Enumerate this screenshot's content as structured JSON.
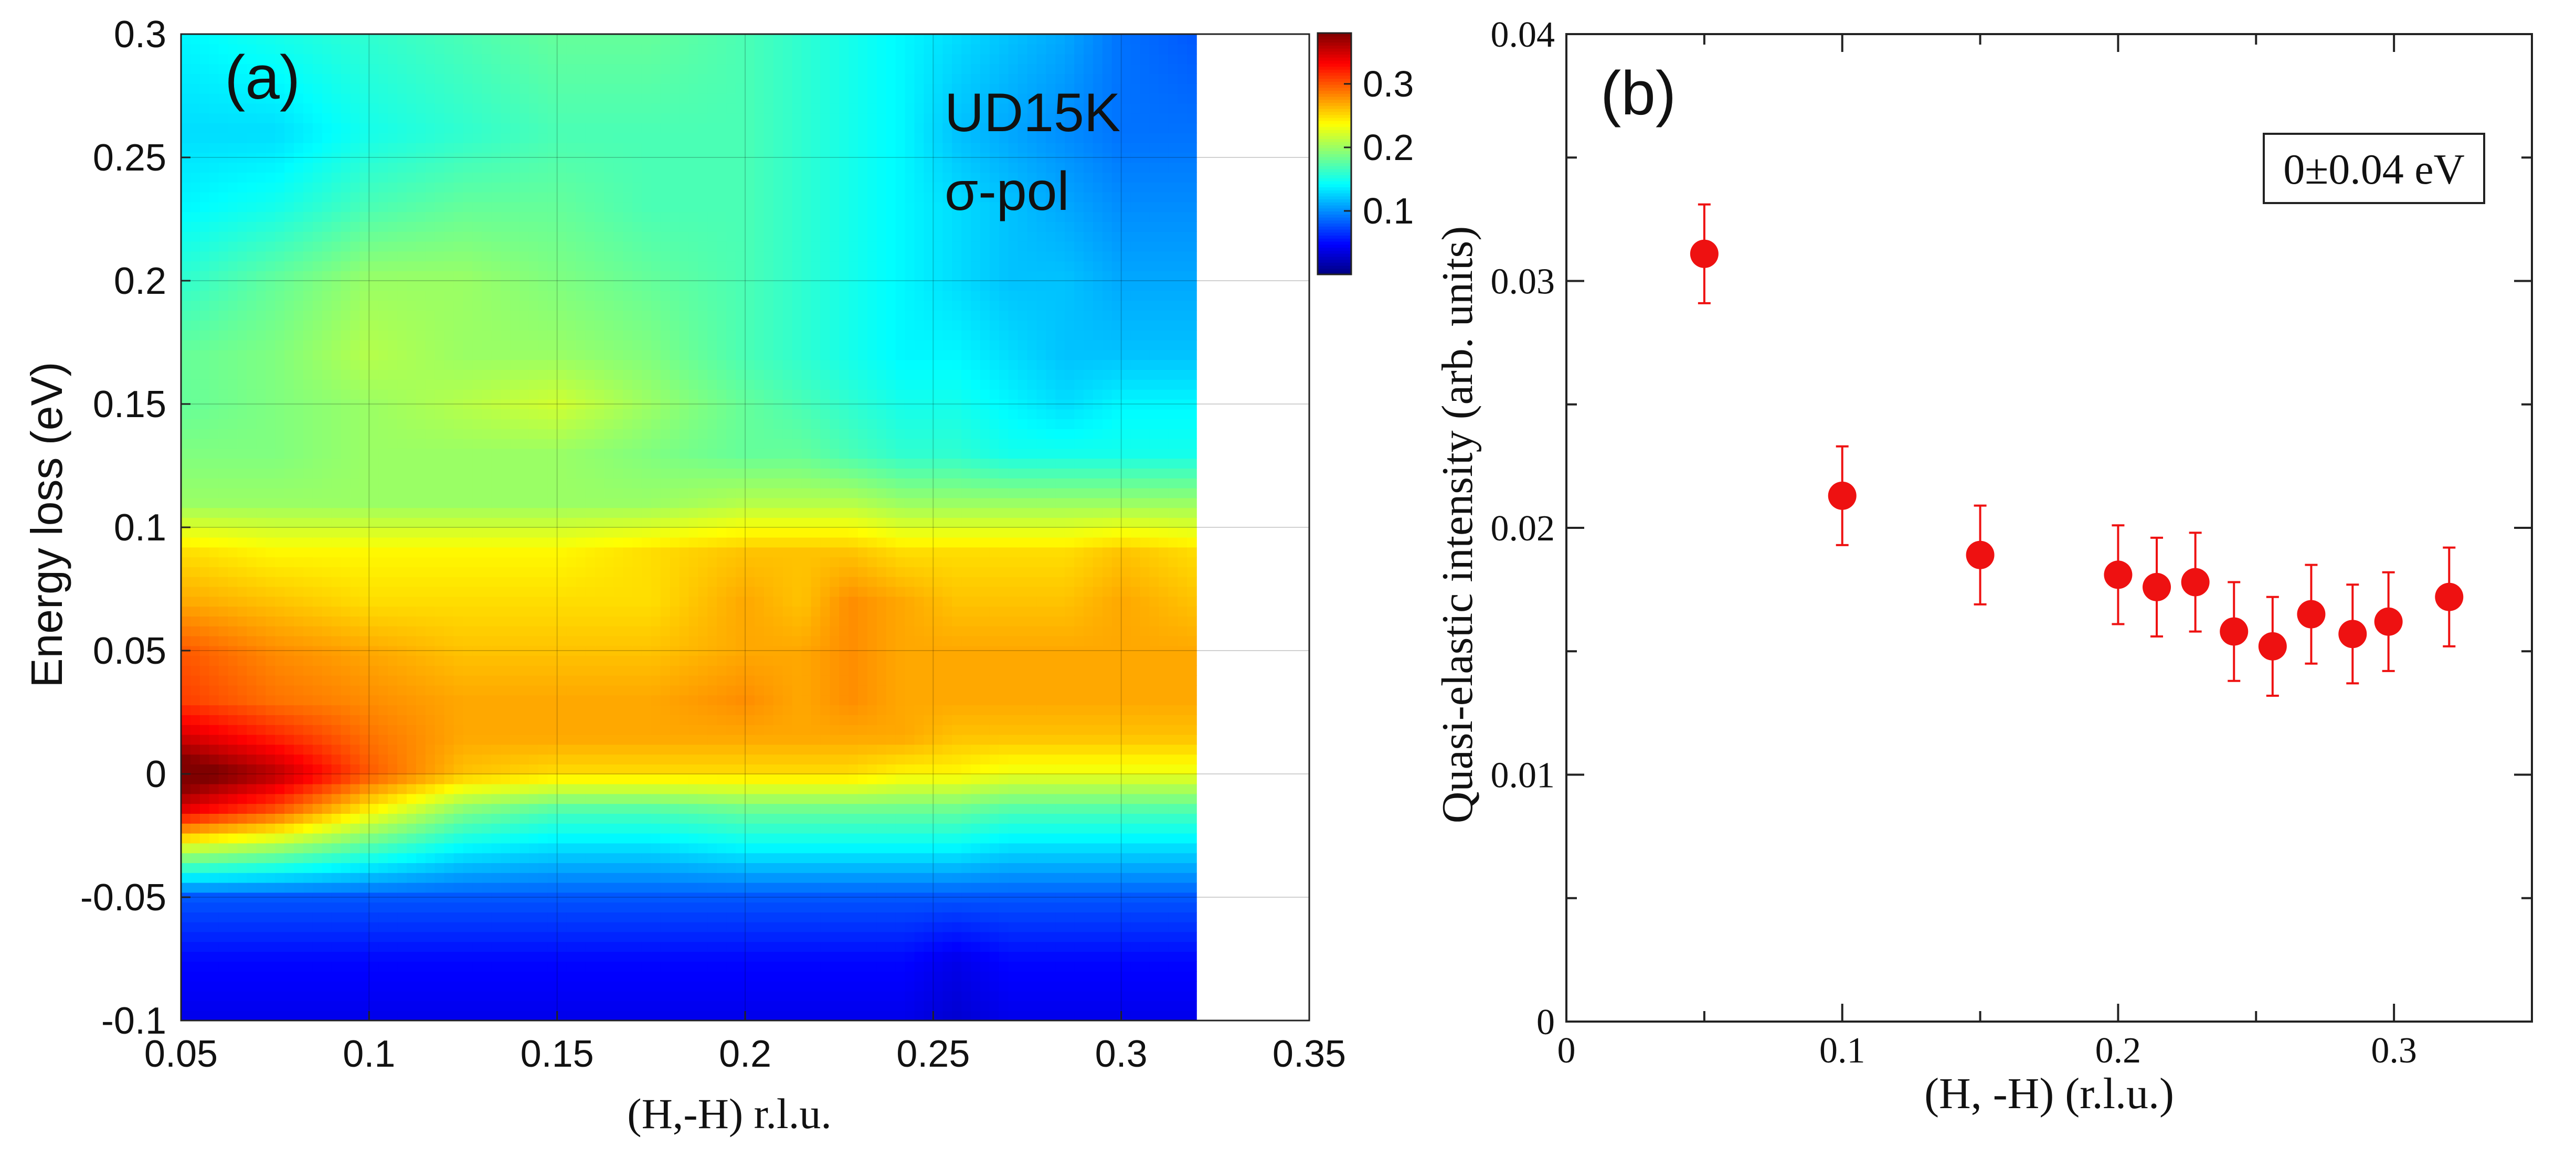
{
  "chart_data": [
    {
      "panel_label": "(a)",
      "type": "heatmap",
      "xlabel": "(H,-H) r.l.u.",
      "ylabel": "Energy loss (eV)",
      "xlim": [
        0.05,
        0.35
      ],
      "ylim": [
        -0.1,
        0.3
      ],
      "data_xmax": 0.32,
      "x_ticks": [
        0.05,
        0.1,
        0.15,
        0.2,
        0.25,
        0.3,
        0.35
      ],
      "x_tick_labels": [
        "0.05",
        "0.1",
        "0.15",
        "0.2",
        "0.25",
        "0.3",
        "0.35"
      ],
      "y_ticks": [
        -0.1,
        -0.05,
        0,
        0.05,
        0.1,
        0.15,
        0.2,
        0.25,
        0.3
      ],
      "y_tick_labels": [
        "-0.1",
        "-0.05",
        "0",
        "0.05",
        "0.1",
        "0.15",
        "0.2",
        "0.25",
        "0.3"
      ],
      "grid": true,
      "annotation_lines": [
        "UD15K",
        "σ-pol"
      ],
      "colorbar": {
        "range": [
          0.0,
          0.38
        ],
        "ticks": [
          0.1,
          0.2,
          0.3
        ],
        "tick_labels": [
          "0.1",
          "0.2",
          "0.3"
        ],
        "colormap": "jet"
      },
      "grid_x": [
        0.05,
        0.075,
        0.1,
        0.125,
        0.15,
        0.175,
        0.2,
        0.215,
        0.228,
        0.242,
        0.256,
        0.27,
        0.285,
        0.3,
        0.32
      ],
      "grid_y": [
        -0.1,
        -0.075,
        -0.05,
        -0.03,
        -0.015,
        0,
        0.015,
        0.03,
        0.05,
        0.07,
        0.09,
        0.11,
        0.13,
        0.15,
        0.17,
        0.2,
        0.23,
        0.26,
        0.3
      ],
      "z": [
        [
          0.04,
          0.04,
          0.04,
          0.04,
          0.04,
          0.04,
          0.04,
          0.04,
          0.04,
          0.04,
          0.03,
          0.04,
          0.04,
          0.04,
          0.04
        ],
        [
          0.05,
          0.05,
          0.05,
          0.05,
          0.05,
          0.05,
          0.05,
          0.05,
          0.05,
          0.05,
          0.04,
          0.05,
          0.05,
          0.05,
          0.05
        ],
        [
          0.08,
          0.08,
          0.08,
          0.08,
          0.08,
          0.08,
          0.08,
          0.08,
          0.08,
          0.08,
          0.08,
          0.08,
          0.08,
          0.08,
          0.08
        ],
        [
          0.22,
          0.2,
          0.17,
          0.14,
          0.13,
          0.13,
          0.14,
          0.14,
          0.14,
          0.14,
          0.14,
          0.13,
          0.13,
          0.13,
          0.13
        ],
        [
          0.34,
          0.3,
          0.24,
          0.19,
          0.17,
          0.17,
          0.18,
          0.18,
          0.18,
          0.18,
          0.18,
          0.17,
          0.17,
          0.17,
          0.17
        ],
        [
          0.4,
          0.36,
          0.3,
          0.26,
          0.25,
          0.25,
          0.25,
          0.25,
          0.25,
          0.24,
          0.24,
          0.23,
          0.23,
          0.23,
          0.23
        ],
        [
          0.35,
          0.32,
          0.29,
          0.27,
          0.27,
          0.27,
          0.27,
          0.27,
          0.27,
          0.27,
          0.26,
          0.26,
          0.26,
          0.26,
          0.26
        ],
        [
          0.31,
          0.29,
          0.28,
          0.27,
          0.27,
          0.27,
          0.28,
          0.27,
          0.28,
          0.27,
          0.27,
          0.27,
          0.27,
          0.27,
          0.27
        ],
        [
          0.3,
          0.28,
          0.27,
          0.26,
          0.26,
          0.26,
          0.27,
          0.27,
          0.28,
          0.27,
          0.27,
          0.27,
          0.27,
          0.27,
          0.27
        ],
        [
          0.27,
          0.26,
          0.25,
          0.25,
          0.25,
          0.25,
          0.27,
          0.26,
          0.28,
          0.27,
          0.26,
          0.26,
          0.26,
          0.27,
          0.26
        ],
        [
          0.25,
          0.24,
          0.24,
          0.24,
          0.24,
          0.25,
          0.26,
          0.26,
          0.26,
          0.25,
          0.25,
          0.25,
          0.25,
          0.26,
          0.25
        ],
        [
          0.2,
          0.2,
          0.2,
          0.2,
          0.2,
          0.2,
          0.21,
          0.21,
          0.21,
          0.2,
          0.2,
          0.2,
          0.2,
          0.2,
          0.2
        ],
        [
          0.19,
          0.19,
          0.2,
          0.2,
          0.2,
          0.19,
          0.18,
          0.18,
          0.17,
          0.16,
          0.16,
          0.15,
          0.15,
          0.15,
          0.15
        ],
        [
          0.18,
          0.19,
          0.2,
          0.21,
          0.22,
          0.2,
          0.18,
          0.17,
          0.16,
          0.15,
          0.15,
          0.14,
          0.13,
          0.14,
          0.14
        ],
        [
          0.18,
          0.19,
          0.21,
          0.2,
          0.2,
          0.19,
          0.17,
          0.16,
          0.15,
          0.14,
          0.14,
          0.13,
          0.12,
          0.12,
          0.12
        ],
        [
          0.16,
          0.18,
          0.2,
          0.2,
          0.19,
          0.18,
          0.17,
          0.16,
          0.15,
          0.14,
          0.13,
          0.12,
          0.12,
          0.11,
          0.11
        ],
        [
          0.14,
          0.15,
          0.17,
          0.18,
          0.18,
          0.17,
          0.17,
          0.16,
          0.15,
          0.14,
          0.13,
          0.12,
          0.11,
          0.1,
          0.1
        ],
        [
          0.13,
          0.13,
          0.15,
          0.16,
          0.17,
          0.17,
          0.17,
          0.16,
          0.15,
          0.14,
          0.12,
          0.11,
          0.1,
          0.09,
          0.09
        ],
        [
          0.14,
          0.15,
          0.16,
          0.17,
          0.18,
          0.18,
          0.17,
          0.16,
          0.15,
          0.14,
          0.13,
          0.12,
          0.11,
          0.09,
          0.08
        ]
      ]
    },
    {
      "panel_label": "(b)",
      "type": "scatter",
      "xlabel": "(H, -H) (r.l.u.)",
      "ylabel": "Quasi-elastic intensity (arb. units)",
      "xlim": [
        0,
        0.35
      ],
      "ylim": [
        0,
        0.04
      ],
      "x_ticks": [
        0,
        0.1,
        0.2,
        0.3
      ],
      "x_tick_labels": [
        "0",
        "0.1",
        "0.2",
        "0.3"
      ],
      "y_ticks": [
        0,
        0.01,
        0.02,
        0.03,
        0.04
      ],
      "y_tick_labels": [
        "0",
        "0.01",
        "0.02",
        "0.03",
        "0.04"
      ],
      "legend_text": "0±0.04 eV",
      "legend_position": "top-right",
      "marker_color": "#ee1111",
      "series": [
        {
          "name": "quasi-elastic intensity",
          "x": [
            0.05,
            0.1,
            0.15,
            0.2,
            0.214,
            0.228,
            0.242,
            0.256,
            0.27,
            0.285,
            0.298,
            0.32
          ],
          "y": [
            0.0311,
            0.0213,
            0.0189,
            0.0181,
            0.0176,
            0.0178,
            0.0158,
            0.0152,
            0.0165,
            0.0157,
            0.0162,
            0.0172
          ],
          "yerr": [
            0.002,
            0.002,
            0.002,
            0.002,
            0.002,
            0.002,
            0.002,
            0.002,
            0.002,
            0.002,
            0.002,
            0.002
          ]
        }
      ]
    }
  ]
}
